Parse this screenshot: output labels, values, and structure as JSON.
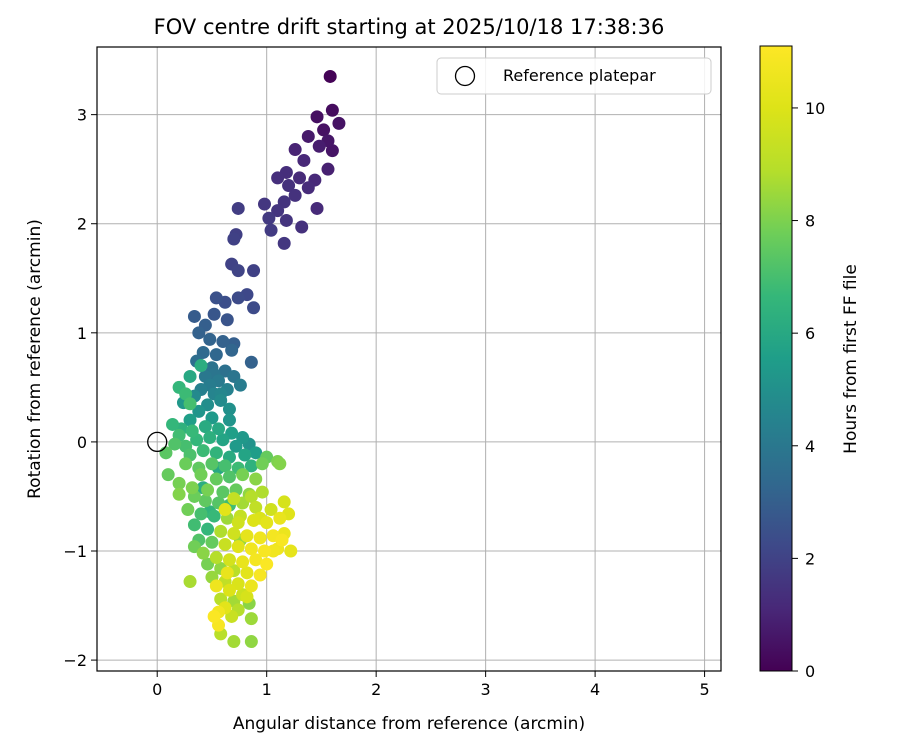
{
  "chart_data": {
    "type": "scatter",
    "title": "FOV centre drift starting at 2025/10/18 17:38:36",
    "xlabel": "Angular distance from reference (arcmin)",
    "ylabel": "Rotation from reference (arcmin)",
    "xlim": [
      -0.55,
      5.15
    ],
    "ylim": [
      -2.1,
      3.62
    ],
    "xticks": [
      0,
      1,
      2,
      3,
      4,
      5
    ],
    "yticks": [
      -2,
      -1,
      0,
      1,
      2,
      3
    ],
    "grid": true,
    "legend": {
      "position": "top-right",
      "entries": [
        "Reference platepar"
      ]
    },
    "colorbar": {
      "label": "Hours from first FF file",
      "colormap": "viridis",
      "range": [
        0,
        11.1
      ],
      "ticks": [
        0,
        2,
        4,
        6,
        8,
        10
      ]
    },
    "reference_point": {
      "x": 0,
      "y": 0,
      "label": "Reference platepar"
    },
    "series": [
      {
        "points": [
          [
            1.58,
            3.35,
            0.05
          ],
          [
            1.6,
            3.04,
            0.3
          ],
          [
            1.46,
            2.98,
            0.4
          ],
          [
            1.66,
            2.92,
            0.5
          ],
          [
            1.52,
            2.86,
            0.45
          ],
          [
            1.38,
            2.8,
            0.7
          ],
          [
            1.56,
            2.76,
            0.6
          ],
          [
            1.48,
            2.71,
            0.8
          ],
          [
            1.6,
            2.67,
            0.55
          ],
          [
            1.26,
            2.68,
            1.0
          ],
          [
            1.34,
            2.58,
            1.1
          ],
          [
            1.18,
            2.47,
            1.3
          ],
          [
            1.3,
            2.42,
            1.2
          ],
          [
            1.44,
            2.4,
            1.15
          ],
          [
            1.56,
            2.5,
            0.9
          ],
          [
            1.1,
            2.42,
            1.35
          ],
          [
            1.2,
            2.35,
            1.4
          ],
          [
            1.38,
            2.33,
            1.25
          ],
          [
            1.26,
            2.26,
            1.45
          ],
          [
            1.16,
            2.2,
            1.5
          ],
          [
            0.98,
            2.18,
            1.6
          ],
          [
            1.1,
            2.12,
            1.55
          ],
          [
            1.02,
            2.05,
            1.7
          ],
          [
            1.18,
            2.03,
            1.5
          ],
          [
            1.32,
            1.97,
            1.4
          ],
          [
            1.46,
            2.14,
            1.2
          ],
          [
            0.74,
            2.14,
            1.8
          ],
          [
            1.04,
            1.94,
            1.75
          ],
          [
            1.16,
            1.82,
            1.6
          ],
          [
            0.72,
            1.9,
            1.9
          ],
          [
            0.7,
            1.86,
            1.95
          ],
          [
            0.68,
            1.63,
            2.0
          ],
          [
            0.74,
            1.57,
            2.05
          ],
          [
            0.88,
            1.57,
            1.95
          ],
          [
            0.82,
            1.35,
            2.2
          ],
          [
            0.74,
            1.32,
            2.3
          ],
          [
            0.62,
            1.28,
            2.4
          ],
          [
            0.54,
            1.32,
            2.5
          ],
          [
            0.88,
            1.23,
            2.3
          ],
          [
            0.52,
            1.17,
            2.7
          ],
          [
            0.34,
            1.15,
            2.9
          ],
          [
            0.64,
            1.12,
            2.6
          ],
          [
            0.44,
            1.07,
            3.0
          ],
          [
            0.38,
            1.0,
            3.1
          ],
          [
            0.48,
            0.94,
            3.2
          ],
          [
            0.6,
            0.92,
            3.1
          ],
          [
            0.7,
            0.9,
            3.0
          ],
          [
            0.42,
            0.82,
            3.4
          ],
          [
            0.54,
            0.8,
            3.3
          ],
          [
            0.68,
            0.84,
            3.25
          ],
          [
            0.86,
            0.73,
            3.1
          ],
          [
            0.36,
            0.74,
            3.6
          ],
          [
            0.5,
            0.68,
            3.8
          ],
          [
            0.62,
            0.65,
            3.7
          ],
          [
            0.44,
            0.6,
            4.0
          ],
          [
            0.56,
            0.56,
            4.1
          ],
          [
            0.7,
            0.6,
            3.9
          ],
          [
            0.4,
            0.48,
            4.3
          ],
          [
            0.52,
            0.44,
            4.5
          ],
          [
            0.64,
            0.48,
            4.4
          ],
          [
            0.76,
            0.52,
            4.2
          ],
          [
            0.34,
            0.42,
            4.7
          ],
          [
            0.46,
            0.34,
            4.9
          ],
          [
            0.58,
            0.38,
            4.8
          ],
          [
            0.66,
            0.3,
            5.0
          ],
          [
            0.24,
            0.36,
            5.3
          ],
          [
            0.38,
            0.28,
            5.2
          ],
          [
            0.5,
            0.22,
            5.4
          ],
          [
            0.3,
            0.2,
            5.6
          ],
          [
            0.2,
            0.5,
            6.6
          ],
          [
            0.26,
            0.44,
            6.8
          ],
          [
            0.3,
            0.35,
            7.0
          ],
          [
            0.4,
            0.7,
            6.2
          ],
          [
            0.22,
            0.12,
            6.4
          ],
          [
            0.14,
            0.16,
            6.6
          ],
          [
            0.2,
            0.06,
            6.9
          ],
          [
            0.32,
            0.1,
            6.7
          ],
          [
            0.44,
            0.14,
            6.1
          ],
          [
            0.56,
            0.12,
            6.0
          ],
          [
            0.68,
            0.08,
            5.6
          ],
          [
            0.78,
            0.04,
            5.3
          ],
          [
            0.84,
            -0.02,
            5.1
          ],
          [
            0.72,
            -0.04,
            5.4
          ],
          [
            0.6,
            0.02,
            5.8
          ],
          [
            0.48,
            0.04,
            6.3
          ],
          [
            0.36,
            0.02,
            6.6
          ],
          [
            0.26,
            -0.04,
            7.0
          ],
          [
            0.16,
            -0.02,
            7.2
          ],
          [
            0.08,
            -0.1,
            7.4
          ],
          [
            0.3,
            -0.12,
            7.1
          ],
          [
            0.42,
            -0.08,
            6.8
          ],
          [
            0.54,
            -0.1,
            6.5
          ],
          [
            0.66,
            -0.14,
            6.1
          ],
          [
            0.8,
            -0.12,
            5.8
          ],
          [
            0.9,
            -0.1,
            5.5
          ],
          [
            1.0,
            -0.14,
            7.6
          ],
          [
            1.1,
            -0.18,
            8.0
          ],
          [
            1.12,
            -0.2,
            8.1
          ],
          [
            0.96,
            -0.2,
            7.8
          ],
          [
            0.86,
            -0.22,
            6.4
          ],
          [
            0.74,
            -0.24,
            6.8
          ],
          [
            0.62,
            -0.22,
            7.0
          ],
          [
            0.5,
            -0.2,
            7.3
          ],
          [
            0.38,
            -0.24,
            7.5
          ],
          [
            0.26,
            -0.2,
            7.7
          ],
          [
            0.4,
            -0.3,
            7.8
          ],
          [
            0.54,
            -0.34,
            7.6
          ],
          [
            0.66,
            -0.32,
            7.2
          ],
          [
            0.78,
            -0.3,
            7.9
          ],
          [
            0.9,
            -0.34,
            8.2
          ],
          [
            0.1,
            -0.3,
            7.6
          ],
          [
            0.2,
            -0.38,
            7.9
          ],
          [
            0.32,
            -0.42,
            8.0
          ],
          [
            0.46,
            -0.44,
            7.9
          ],
          [
            0.6,
            -0.46,
            7.4
          ],
          [
            0.72,
            -0.44,
            7.6
          ],
          [
            0.84,
            -0.48,
            8.3
          ],
          [
            0.96,
            -0.46,
            8.8
          ],
          [
            0.2,
            -0.48,
            8.1
          ],
          [
            0.34,
            -0.5,
            7.7
          ],
          [
            0.44,
            -0.54,
            7.5
          ],
          [
            0.56,
            -0.56,
            7.3
          ],
          [
            0.66,
            -0.58,
            6.9
          ],
          [
            0.78,
            -0.56,
            8.6
          ],
          [
            0.9,
            -0.6,
            9.2
          ],
          [
            1.04,
            -0.62,
            9.6
          ],
          [
            1.16,
            -0.55,
            9.8
          ],
          [
            0.28,
            -0.62,
            7.8
          ],
          [
            0.4,
            -0.66,
            7.0
          ],
          [
            0.52,
            -0.68,
            6.7
          ],
          [
            0.64,
            -0.7,
            8.5
          ],
          [
            0.76,
            -0.68,
            9.3
          ],
          [
            0.88,
            -0.72,
            10.0
          ],
          [
            1.0,
            -0.74,
            10.2
          ],
          [
            1.12,
            -0.7,
            10.4
          ],
          [
            1.2,
            -0.66,
            10.1
          ],
          [
            0.34,
            -0.76,
            6.9
          ],
          [
            0.46,
            -0.8,
            6.6
          ],
          [
            0.58,
            -0.82,
            8.8
          ],
          [
            0.7,
            -0.84,
            9.6
          ],
          [
            0.82,
            -0.86,
            10.3
          ],
          [
            0.94,
            -0.88,
            10.6
          ],
          [
            1.06,
            -0.86,
            10.8
          ],
          [
            1.16,
            -0.84,
            10.5
          ],
          [
            0.38,
            -0.9,
            7.2
          ],
          [
            0.5,
            -0.92,
            7.6
          ],
          [
            0.62,
            -0.94,
            9.4
          ],
          [
            0.74,
            -0.96,
            10.1
          ],
          [
            0.86,
            -0.98,
            10.7
          ],
          [
            0.98,
            -1.0,
            10.9
          ],
          [
            1.1,
            -0.98,
            10.6
          ],
          [
            1.22,
            -1.0,
            10.3
          ],
          [
            0.34,
            -0.96,
            7.8
          ],
          [
            0.42,
            -1.02,
            8.2
          ],
          [
            0.54,
            -1.06,
            8.9
          ],
          [
            0.66,
            -1.08,
            9.7
          ],
          [
            0.78,
            -1.1,
            10.4
          ],
          [
            0.9,
            -1.08,
            10.8
          ],
          [
            1.0,
            -1.12,
            11.0
          ],
          [
            0.46,
            -1.12,
            7.9
          ],
          [
            0.58,
            -1.16,
            8.3
          ],
          [
            0.7,
            -1.18,
            9.0
          ],
          [
            0.82,
            -1.2,
            10.2
          ],
          [
            0.94,
            -1.22,
            10.9
          ],
          [
            0.5,
            -1.24,
            8.4
          ],
          [
            0.62,
            -1.28,
            9.2
          ],
          [
            0.74,
            -1.3,
            9.9
          ],
          [
            0.86,
            -1.32,
            10.5
          ],
          [
            0.3,
            -1.28,
            8.7
          ],
          [
            0.54,
            -1.32,
            10.6
          ],
          [
            0.66,
            -1.36,
            10.0
          ],
          [
            0.78,
            -1.4,
            9.5
          ],
          [
            0.58,
            -1.44,
            9.0
          ],
          [
            0.7,
            -1.46,
            8.6
          ],
          [
            0.82,
            -1.42,
            9.8
          ],
          [
            0.62,
            -1.52,
            10.2
          ],
          [
            0.74,
            -1.54,
            8.9
          ],
          [
            0.84,
            -1.48,
            8.2
          ],
          [
            0.56,
            -1.56,
            10.7
          ],
          [
            0.68,
            -1.6,
            9.4
          ],
          [
            0.52,
            -1.6,
            11.0
          ],
          [
            0.86,
            -1.62,
            8.5
          ],
          [
            0.56,
            -1.68,
            10.9
          ],
          [
            0.58,
            -1.76,
            9.0
          ],
          [
            0.7,
            -1.83,
            8.6
          ],
          [
            0.86,
            -1.83,
            8.3
          ],
          [
            0.64,
            -1.2,
            10.4
          ],
          [
            0.74,
            -0.74,
            9.6
          ],
          [
            0.62,
            -0.62,
            10.2
          ],
          [
            0.7,
            -0.52,
            9.3
          ],
          [
            0.86,
            -0.5,
            8.9
          ],
          [
            0.94,
            -0.7,
            9.9
          ],
          [
            1.06,
            -1.0,
            10.7
          ],
          [
            1.14,
            -0.9,
            10.9
          ],
          [
            0.76,
            -0.9,
            8.4
          ],
          [
            0.48,
            -0.64,
            6.5
          ],
          [
            0.42,
            -0.42,
            6.2
          ],
          [
            0.56,
            -0.24,
            6.0
          ],
          [
            0.66,
            0.2,
            5.2
          ],
          [
            0.58,
            0.44,
            4.6
          ],
          [
            0.48,
            0.52,
            4.2
          ],
          [
            0.3,
            0.6,
            6.0
          ],
          [
            0.52,
            0.62,
            3.9
          ]
        ]
      }
    ]
  }
}
